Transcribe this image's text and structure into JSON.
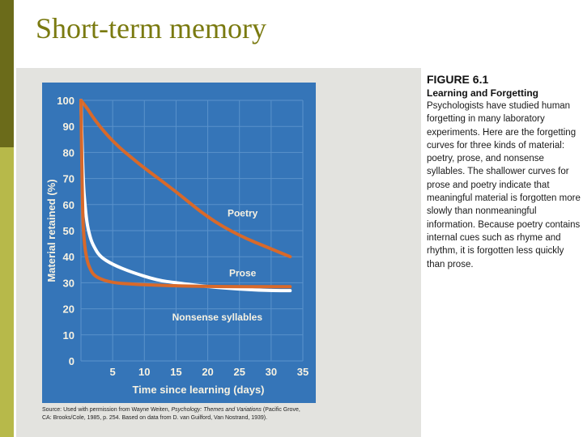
{
  "slide": {
    "title": "Short-term memory"
  },
  "figure": {
    "number": "FIGURE 6.1",
    "title": "Learning and Forgetting",
    "caption": "Psychologists have studied human forgetting in many laboratory experiments. Here are the forgetting curves for three kinds of material: poetry, prose, and nonsense syllables. The shallower curves for prose and poetry indicate that meaningful material is forgotten more slowly than nonmeaningful information. Because poetry contains internal cues such as rhyme and rhythm, it is forgotten less quickly than prose.",
    "source_prefix": "Source: Used with permission from Wayne Weiten, ",
    "source_book": "Psychology: Themes and Variations",
    "source_suffix": " (Pacific Grove, CA: Brooks/Cole, 1985, p. 254. Based on data from D. van Guilford, Van Nostrand, 1939)."
  },
  "colors": {
    "panel": "#3575b8",
    "grid": "#5a92cb",
    "axis_text": "#f7f2e2",
    "curve_orange": "#d8692a",
    "curve_white": "#ffffff",
    "slide_accent": "#7a7a10"
  },
  "chart_data": {
    "type": "line",
    "title": "",
    "xlabel": "Time since learning (days)",
    "ylabel": "Material retained (%)",
    "xlim": [
      0,
      35
    ],
    "ylim": [
      0,
      100
    ],
    "x_ticks": [
      5,
      10,
      15,
      20,
      25,
      30,
      35
    ],
    "y_ticks": [
      0,
      10,
      20,
      30,
      40,
      50,
      60,
      70,
      80,
      90,
      100
    ],
    "grid": true,
    "series": [
      {
        "name": "Poetry",
        "color": "#d8692a",
        "x": [
          0,
          1,
          2,
          4,
          6,
          8,
          10,
          15,
          20,
          25,
          30,
          33
        ],
        "y": [
          100,
          97,
          93,
          87,
          82,
          78,
          74,
          65,
          55,
          48,
          43,
          40
        ]
      },
      {
        "name": "Prose",
        "color": "#ffffff",
        "x": [
          0,
          0.3,
          0.7,
          1,
          1.5,
          2,
          3,
          5,
          8,
          12,
          15,
          20,
          25,
          30,
          33
        ],
        "y": [
          100,
          70,
          58,
          52,
          47,
          44,
          40,
          37,
          34,
          31,
          30,
          28.5,
          27.5,
          27,
          27
        ]
      },
      {
        "name": "Nonsense syllables",
        "color": "#d8692a",
        "x": [
          0,
          0.2,
          0.5,
          1,
          1.5,
          2,
          3,
          5,
          8,
          12,
          20,
          33
        ],
        "y": [
          100,
          60,
          45,
          38,
          35,
          33,
          31.5,
          30,
          29.5,
          29,
          28.5,
          28.5
        ]
      }
    ]
  }
}
